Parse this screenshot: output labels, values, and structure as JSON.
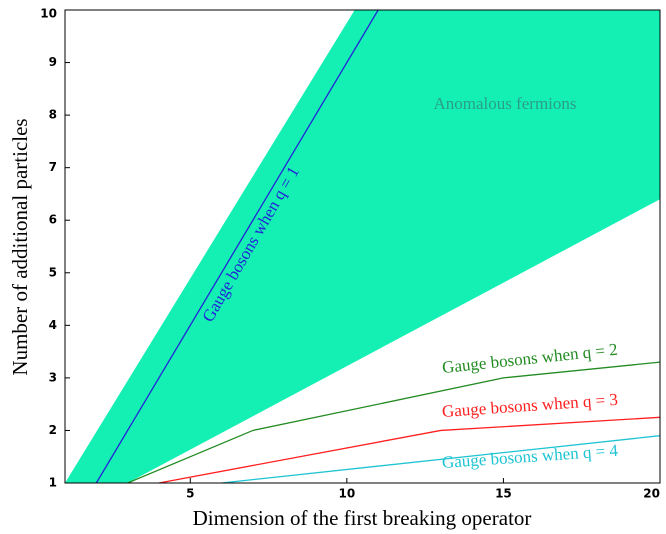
{
  "chart_data": {
    "type": "line",
    "xlabel": "Dimension of the first breaking operator",
    "ylabel": "Number of additional particles",
    "xlim": [
      1,
      20
    ],
    "ylim": [
      1,
      10
    ],
    "xticks": [
      5,
      10,
      15,
      20
    ],
    "yticks": [
      1,
      2,
      3,
      4,
      5,
      6,
      7,
      8,
      9,
      10
    ],
    "area": {
      "name": "Anomalous fermions",
      "color": "#14f0b4",
      "x": [
        1,
        10.25,
        20,
        20,
        3
      ],
      "y": [
        1,
        10,
        10,
        6.4,
        1
      ]
    },
    "series": [
      {
        "name": "Gauge bosons when q = 1",
        "color": "#2424d8",
        "x": [
          2,
          11
        ],
        "y": [
          1,
          10
        ]
      },
      {
        "name": "Gauge bosons when q = 2",
        "color": "#238b23",
        "x": [
          3,
          7,
          15,
          20
        ],
        "y": [
          1,
          2,
          3,
          3.3
        ]
      },
      {
        "name": "Gauge bosons when q = 3",
        "color": "#ff2020",
        "x": [
          4,
          13,
          20
        ],
        "y": [
          1,
          2,
          2.25
        ]
      },
      {
        "name": "Gauge bosons when q = 4",
        "color": "#1ec4d2",
        "x": [
          6,
          20
        ],
        "y": [
          1,
          1.9
        ]
      }
    ]
  }
}
